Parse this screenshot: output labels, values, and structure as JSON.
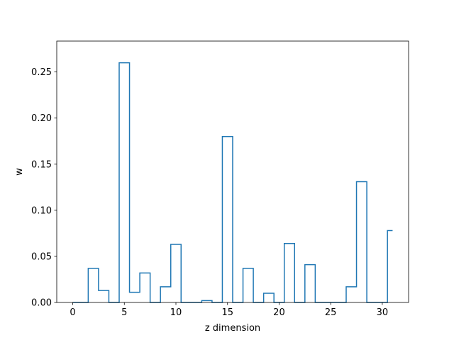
{
  "chart_data": {
    "type": "line",
    "style": "step",
    "title": "",
    "xlabel": "z dimension",
    "ylabel": "w",
    "xlim": [
      -1.55,
      32.55
    ],
    "ylim": [
      0,
      0.2835
    ],
    "xticks": [
      0,
      5,
      10,
      15,
      20,
      25,
      30
    ],
    "yticks": [
      0.0,
      0.05,
      0.1,
      0.15,
      0.2,
      0.25
    ],
    "ytick_labels": [
      "0.00",
      "0.05",
      "0.10",
      "0.15",
      "0.20",
      "0.25"
    ],
    "grid": false,
    "legend": false,
    "series": [
      {
        "color": "#1f77b4",
        "x": [
          0,
          1,
          2,
          3,
          4,
          5,
          6,
          7,
          8,
          9,
          10,
          11,
          12,
          13,
          14,
          15,
          16,
          17,
          18,
          19,
          20,
          21,
          22,
          23,
          24,
          25,
          26,
          27,
          28,
          29,
          30,
          31
        ],
        "values": [
          0.0,
          0.0,
          0.037,
          0.013,
          0.0,
          0.26,
          0.011,
          0.032,
          0.0,
          0.017,
          0.063,
          0.0,
          0.0,
          0.002,
          0.0,
          0.18,
          0.0,
          0.037,
          0.0,
          0.01,
          0.0,
          0.064,
          0.0,
          0.041,
          0.0,
          0.0,
          0.0,
          0.017,
          0.131,
          0.0,
          0.0,
          0.078
        ]
      }
    ]
  }
}
